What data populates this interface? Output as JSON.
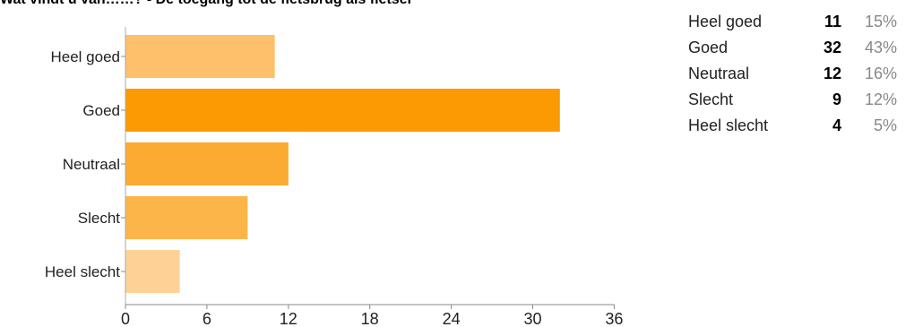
{
  "chart_data": {
    "type": "bar",
    "orientation": "horizontal",
    "title": "Wat vindt u van……? - De toegang tot de fietsbrug als fietser",
    "categories": [
      "Heel goed",
      "Goed",
      "Neutraal",
      "Slecht",
      "Heel slecht"
    ],
    "values": [
      11,
      32,
      12,
      9,
      4
    ],
    "colors": [
      "#fec06b",
      "#fc9a04",
      "#fbaa32",
      "#fcb548",
      "#fed297"
    ],
    "xlim": [
      0,
      36
    ],
    "xticks": [
      0,
      6,
      12,
      18,
      24,
      30,
      36
    ],
    "grid": false,
    "legend": "none"
  },
  "summary": {
    "rows": [
      {
        "label": "Heel goed",
        "count": "11",
        "percent": "15%"
      },
      {
        "label": "Goed",
        "count": "32",
        "percent": "43%"
      },
      {
        "label": "Neutraal",
        "count": "12",
        "percent": "16%"
      },
      {
        "label": "Slecht",
        "count": "9",
        "percent": "12%"
      },
      {
        "label": "Heel slecht",
        "count": "4",
        "percent": "5%"
      }
    ]
  }
}
